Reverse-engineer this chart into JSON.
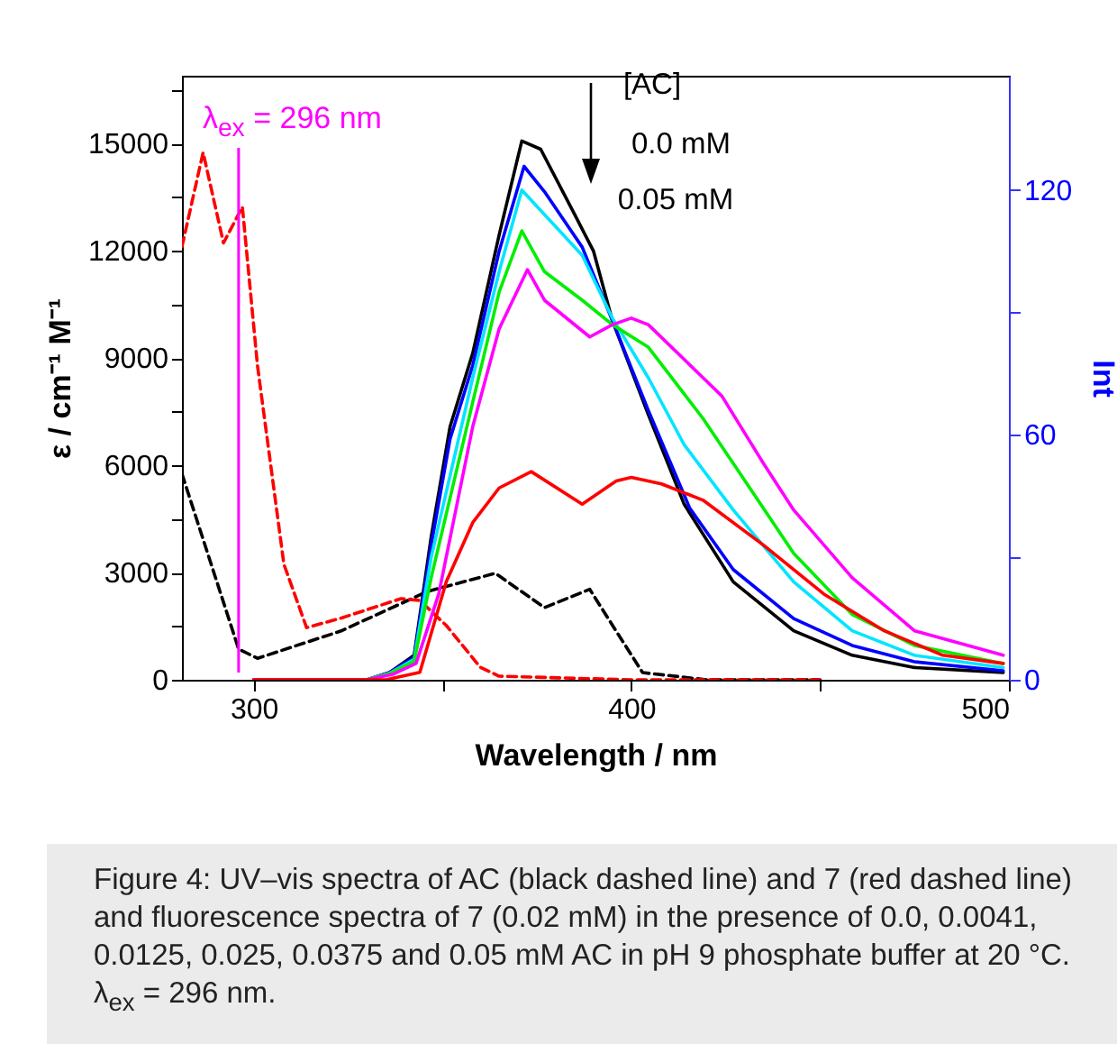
{
  "chart_data": {
    "type": "line",
    "xlabel": "Wavelength / nm",
    "ylabel": "ε / cm⁻¹ M⁻¹",
    "y2label": "Int",
    "xlim": [
      281,
      500
    ],
    "xticks": [
      300,
      {
        "value": 350,
        "label": null
      },
      400,
      {
        "value": 450,
        "label": null
      },
      500
    ],
    "ylim": [
      0,
      16900
    ],
    "yticks": [
      0,
      {
        "value": 1500,
        "label": null
      },
      3000,
      {
        "value": 4500,
        "label": null
      },
      6000,
      {
        "value": 7500,
        "label": null
      },
      9000,
      {
        "value": 10500,
        "label": null
      },
      12000,
      {
        "value": 13500,
        "label": null
      },
      15000,
      {
        "value": 16500,
        "label": null
      }
    ],
    "y2lim": [
      0,
      148
    ],
    "y2ticks": [
      0,
      {
        "value": 30,
        "label": null
      },
      60,
      {
        "value": 90,
        "label": null
      },
      120
    ],
    "grid": false,
    "series": [
      {
        "line_style": "dashed",
        "color": "#000000",
        "x": [
          281,
          296,
          301,
          323,
          346,
          364,
          377,
          389,
          396,
          403,
          420,
          450
        ],
        "values": [
          5760,
          860,
          600,
          1360,
          2470,
          2980,
          2020,
          2530,
          1360,
          200,
          0,
          0
        ]
      },
      {
        "line_style": "dashed",
        "color": "#ff0000",
        "x": [
          281,
          286.6,
          292,
          297,
          301,
          308,
          314,
          323,
          339,
          344,
          351,
          360,
          365,
          400,
          450
        ],
        "values": [
          12120,
          14750,
          12220,
          13230,
          8790,
          3230,
          1460,
          1720,
          2270,
          2220,
          1520,
          350,
          100,
          0,
          0
        ]
      },
      {
        "axis": "y2",
        "color": "#000000",
        "x": [
          300,
          330,
          336,
          342.5,
          347,
          352,
          358,
          365,
          371,
          376,
          385,
          390,
          395,
          404.5,
          414,
          427,
          443,
          458.5,
          475,
          498.5
        ],
        "values": [
          0,
          0,
          1.8,
          6,
          35,
          62,
          80,
          109,
          132,
          130,
          114,
          105,
          88,
          65,
          43,
          24,
          12,
          6,
          3,
          1.8
        ]
      },
      {
        "axis": "y2",
        "color": "#0000ff",
        "x": [
          300,
          330,
          336,
          342.5,
          347,
          352,
          358,
          365,
          371.6,
          377,
          387,
          395,
          404.5,
          415.5,
          427,
          443,
          458.5,
          475,
          498.5
        ],
        "values": [
          0,
          0,
          1.8,
          5.5,
          33,
          59,
          77,
          105,
          125.8,
          119.6,
          106,
          88,
          66,
          42,
          27,
          15,
          8.4,
          4.4,
          2.2
        ]
      },
      {
        "axis": "y2",
        "color": "#00e5ff",
        "x": [
          300,
          330,
          336,
          342.5,
          347,
          358,
          365,
          371,
          377,
          387,
          395,
          404.5,
          414,
          427,
          443,
          458.5,
          475,
          498.5
        ],
        "values": [
          0,
          0,
          1.6,
          5,
          30,
          74,
          100,
          120,
          114,
          104,
          88.6,
          74,
          57.6,
          41.6,
          24,
          12,
          6,
          3
        ]
      },
      {
        "axis": "y2",
        "color": "#00ee00",
        "x": [
          300,
          330,
          336,
          342.5,
          347,
          358,
          365,
          371,
          377,
          387,
          395,
          404.5,
          419,
          427,
          443,
          458.5,
          475,
          498.5
        ],
        "values": [
          0,
          0,
          1.5,
          4.5,
          25,
          68,
          95,
          110,
          100,
          93,
          87,
          81.5,
          64,
          53,
          31,
          16,
          8.4,
          4
        ]
      },
      {
        "axis": "y2",
        "color": "#ff00ff",
        "x": [
          300,
          330,
          337,
          343,
          349,
          358,
          365,
          372.5,
          377,
          389,
          395,
          400,
          404.5,
          419,
          424,
          435,
          443,
          458.5,
          475,
          498.5
        ],
        "values": [
          0,
          0,
          1.4,
          4,
          21,
          62,
          86,
          100.5,
          93,
          84,
          87,
          88.6,
          87,
          74,
          69.5,
          53,
          41.6,
          25,
          12,
          6
        ]
      },
      {
        "axis": "y2",
        "color": "#ff0000",
        "x": [
          300,
          335,
          344,
          351,
          358,
          365,
          373.5,
          387,
          396,
          400,
          408,
          419,
          435,
          451,
          467,
          482.5,
          498.5
        ],
        "values": [
          0,
          0,
          1.8,
          24,
          38.5,
          47,
          51,
          43,
          48.7,
          49.6,
          48,
          44,
          33,
          21,
          12,
          6,
          4
        ]
      }
    ],
    "ref_lines": [
      {
        "axis": "x",
        "value": 296,
        "label": "λ$_{ex}$ = 296 nm",
        "color": "#ff00ff"
      }
    ],
    "annotations": [
      "[AC]",
      "0.0 mM",
      "0.05 mM",
      "Figure 4: UV–vis spectra of AC (black dashed line) and 7 (red dashed line) and fluorescence spectra of 7 (0.02 mM) in the presence of 0.0, 0.0041, 0.0125, 0.025, 0.0375 and 0.05 mM AC in pH 9 phosphate buffer at 20 °C. λ$_{ex}$ = 296 nm."
    ]
  }
}
